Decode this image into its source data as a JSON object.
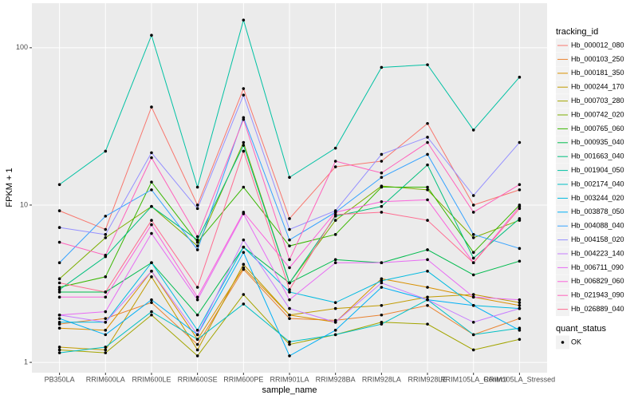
{
  "chart_data": {
    "type": "line",
    "x_label": "sample_name",
    "y_label": "FPKM + 1",
    "log_scale": true,
    "grid": true,
    "legend_position": "right",
    "legend_title": "tracking_id",
    "point_color": "#000000",
    "shape_legend_title": "quant_status",
    "shape_legend_entries": [
      "OK"
    ],
    "categories": [
      "PB350LA",
      "RRIM600LA",
      "RRIM600LE",
      "RRIM600SE",
      "RRIM600PE",
      "RRIM901LA",
      "RRIM928BA",
      "RRIM928LA",
      "RRIM928LE",
      "RRIM105LA_Control",
      "RRIM105LA_Stressed"
    ],
    "ylim": [
      0.86,
      192
    ],
    "yticks": [
      1,
      10,
      100
    ],
    "series": [
      {
        "name": "Hb_000012_080",
        "color": "#F8766D",
        "values": [
          9.2,
          7,
          42,
          10,
          55,
          8.2,
          17.5,
          19,
          33,
          10,
          12.5
        ]
      },
      {
        "name": "Hb_000103_250",
        "color": "#EA8331",
        "values": [
          1.75,
          1.9,
          2.4,
          1.3,
          3.9,
          1.9,
          1.85,
          2.0,
          2.3,
          1.5,
          1.9
        ]
      },
      {
        "name": "Hb_000181_350",
        "color": "#D89000",
        "values": [
          1.65,
          1.6,
          3.8,
          1.4,
          4.0,
          2.0,
          1.8,
          3.4,
          3.0,
          2.6,
          2.3
        ]
      },
      {
        "name": "Hb_000244_170",
        "color": "#C09B00",
        "values": [
          1.25,
          1.2,
          3.5,
          1.2,
          4.2,
          2.0,
          2.2,
          2.3,
          2.6,
          2.7,
          2.4
        ]
      },
      {
        "name": "Hb_000703_280",
        "color": "#A3A500",
        "values": [
          1.2,
          1.15,
          2.0,
          1.1,
          2.7,
          1.3,
          1.5,
          1.8,
          1.75,
          1.2,
          1.4
        ]
      },
      {
        "name": "Hb_000742_020",
        "color": "#7CAE00",
        "values": [
          3.4,
          6.2,
          9.8,
          5.5,
          25,
          3.2,
          8,
          13.2,
          12.5,
          6.2,
          8
        ]
      },
      {
        "name": "Hb_000765_060",
        "color": "#39B600",
        "values": [
          3.0,
          3.5,
          14,
          5.8,
          13,
          5.5,
          6.5,
          13,
          13,
          5.0,
          10
        ]
      },
      {
        "name": "Hb_000935_040",
        "color": "#00BB4E",
        "values": [
          2.8,
          2.8,
          4.3,
          2.0,
          5.4,
          3.2,
          4.5,
          4.3,
          5.2,
          3.6,
          4.4
        ]
      },
      {
        "name": "Hb_001663_040",
        "color": "#00BF7D",
        "values": [
          2.9,
          4.7,
          9.8,
          6,
          24,
          3.2,
          8.5,
          9.8,
          18,
          4.6,
          8.2
        ]
      },
      {
        "name": "Hb_001904_050",
        "color": "#00C1A3",
        "values": [
          13.5,
          22,
          120,
          13,
          150,
          15,
          23,
          75,
          78,
          30,
          65
        ]
      },
      {
        "name": "Hb_002174_040",
        "color": "#00BFC4",
        "values": [
          1.15,
          1.25,
          2.1,
          1.4,
          2.35,
          1.35,
          1.5,
          1.75,
          2.5,
          1.5,
          1.65
        ]
      },
      {
        "name": "Hb_003244_020",
        "color": "#00BAE0",
        "values": [
          1.8,
          1.8,
          4.3,
          1.6,
          5.4,
          2.8,
          2.4,
          3.3,
          3.8,
          2.3,
          2.2
        ]
      },
      {
        "name": "Hb_003878_050",
        "color": "#00B0F6",
        "values": [
          1.9,
          1.5,
          2.5,
          1.5,
          5,
          1.1,
          1.6,
          3.0,
          2.5,
          2.3,
          1.6
        ]
      },
      {
        "name": "Hb_004088_040",
        "color": "#35A2FF",
        "values": [
          4.3,
          8.5,
          12.5,
          5.2,
          36,
          6,
          9,
          15,
          21,
          6.5,
          5.3
        ]
      },
      {
        "name": "Hb_004158_020",
        "color": "#9590FF",
        "values": [
          7.2,
          6.5,
          21.5,
          9.5,
          50,
          7,
          9.2,
          21,
          27,
          11.5,
          25
        ]
      },
      {
        "name": "Hb_004223_140",
        "color": "#C77CFF",
        "values": [
          2.0,
          1.8,
          3.8,
          1.5,
          6,
          2.2,
          1.8,
          3.2,
          2.5,
          1.8,
          2.2
        ]
      },
      {
        "name": "Hb_006711_090",
        "color": "#E76BF3",
        "values": [
          2.0,
          2.1,
          6.6,
          2.5,
          8.8,
          2.5,
          4.3,
          4.3,
          4.5,
          2.6,
          2.5
        ]
      },
      {
        "name": "Hb_006829_060",
        "color": "#FA62DB",
        "values": [
          2.6,
          2.6,
          7.5,
          2.6,
          9,
          4,
          9,
          10.5,
          10.8,
          4.3,
          9.8
        ]
      },
      {
        "name": "Hb_021943_090",
        "color": "#FF62BC",
        "values": [
          5.8,
          4.8,
          20,
          6.3,
          35,
          4.5,
          19,
          16,
          25,
          9,
          13.5
        ]
      },
      {
        "name": "Hb_026889_040",
        "color": "#FF6C91",
        "values": [
          3.2,
          2.8,
          8,
          3.0,
          22,
          2.9,
          8.7,
          9,
          8,
          4.3,
          9.5
        ]
      }
    ]
  }
}
